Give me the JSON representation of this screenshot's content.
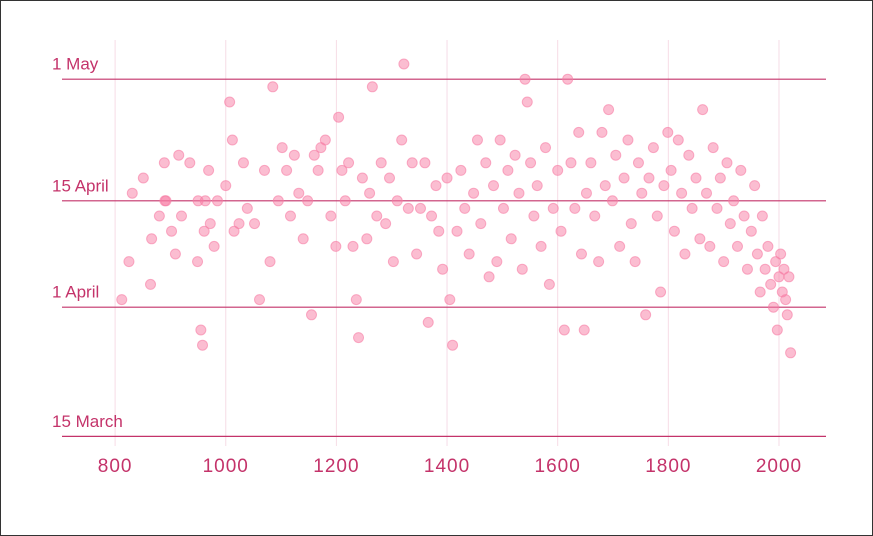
{
  "chart_data": {
    "type": "scatter",
    "x": [
      812,
      825,
      831,
      851,
      864,
      866,
      880,
      889,
      890,
      892,
      902,
      909,
      915,
      920,
      935,
      949,
      950,
      955,
      958,
      961,
      963,
      969,
      972,
      979,
      985,
      1000,
      1007,
      1012,
      1015,
      1024,
      1032,
      1039,
      1052,
      1061,
      1070,
      1080,
      1085,
      1095,
      1102,
      1110,
      1117,
      1124,
      1132,
      1140,
      1148,
      1155,
      1160,
      1167,
      1172,
      1180,
      1190,
      1199,
      1204,
      1210,
      1216,
      1222,
      1230,
      1236,
      1240,
      1247,
      1255,
      1260,
      1265,
      1273,
      1281,
      1289,
      1296,
      1303,
      1310,
      1318,
      1322,
      1330,
      1337,
      1345,
      1352,
      1360,
      1366,
      1372,
      1380,
      1385,
      1392,
      1400,
      1405,
      1410,
      1418,
      1425,
      1432,
      1440,
      1448,
      1455,
      1461,
      1470,
      1476,
      1484,
      1490,
      1496,
      1502,
      1510,
      1516,
      1523,
      1530,
      1536,
      1541,
      1545,
      1551,
      1557,
      1563,
      1570,
      1578,
      1585,
      1592,
      1600,
      1606,
      1612,
      1618,
      1624,
      1631,
      1638,
      1643,
      1648,
      1652,
      1660,
      1667,
      1674,
      1680,
      1686,
      1692,
      1699,
      1705,
      1712,
      1720,
      1727,
      1733,
      1740,
      1746,
      1752,
      1759,
      1765,
      1773,
      1780,
      1786,
      1792,
      1799,
      1805,
      1811,
      1818,
      1824,
      1830,
      1837,
      1843,
      1850,
      1857,
      1862,
      1869,
      1875,
      1881,
      1888,
      1894,
      1900,
      1906,
      1912,
      1918,
      1925,
      1931,
      1937,
      1943,
      1950,
      1956,
      1961,
      1966,
      1970,
      1975,
      1980,
      1985,
      1990,
      1994,
      1997,
      2000,
      2003,
      2006,
      2009,
      2012,
      2015,
      2018,
      2021
    ],
    "y": [
      92,
      97,
      106,
      108,
      94,
      100,
      103,
      110,
      105,
      105,
      101,
      98,
      111,
      103,
      110,
      97,
      105,
      88,
      86,
      101,
      105,
      109,
      102,
      99,
      105,
      107,
      118,
      113,
      101,
      102,
      110,
      104,
      102,
      92,
      109,
      97,
      120,
      105,
      112,
      109,
      103,
      111,
      106,
      100,
      105,
      90,
      111,
      109,
      112,
      113,
      103,
      99,
      116,
      109,
      105,
      110,
      99,
      92,
      87,
      108,
      100,
      106,
      120,
      103,
      110,
      102,
      108,
      97,
      105,
      113,
      123,
      104,
      110,
      98,
      104,
      110,
      89,
      103,
      107,
      101,
      96,
      108,
      92,
      86,
      101,
      109,
      104,
      98,
      106,
      113,
      102,
      110,
      95,
      107,
      97,
      113,
      104,
      109,
      100,
      111,
      106,
      96,
      121,
      118,
      110,
      103,
      107,
      99,
      112,
      94,
      104,
      109,
      101,
      88,
      121,
      110,
      104,
      114,
      98,
      88,
      106,
      110,
      103,
      97,
      114,
      107,
      117,
      105,
      111,
      99,
      108,
      113,
      102,
      97,
      110,
      106,
      90,
      108,
      112,
      103,
      93,
      107,
      114,
      109,
      101,
      113,
      106,
      98,
      111,
      104,
      108,
      100,
      117,
      106,
      99,
      112,
      104,
      108,
      97,
      110,
      102,
      105,
      99,
      109,
      103,
      96,
      101,
      107,
      98,
      93,
      103,
      96,
      99,
      94,
      91,
      97,
      88,
      95,
      98,
      93,
      96,
      92,
      90,
      95,
      85
    ],
    "color": "#f77ba3",
    "xlim": [
      704,
      2085
    ],
    "xticks": [
      800,
      1000,
      1200,
      1400,
      1600,
      1800,
      2000
    ],
    "ylim": [
      70,
      128
    ],
    "yticks": [
      {
        "value": 74,
        "label": "15 March"
      },
      {
        "value": 91,
        "label": "1 April"
      },
      {
        "value": 105,
        "label": "15 April"
      },
      {
        "value": 121,
        "label": "1 May"
      }
    ],
    "grid": true
  }
}
